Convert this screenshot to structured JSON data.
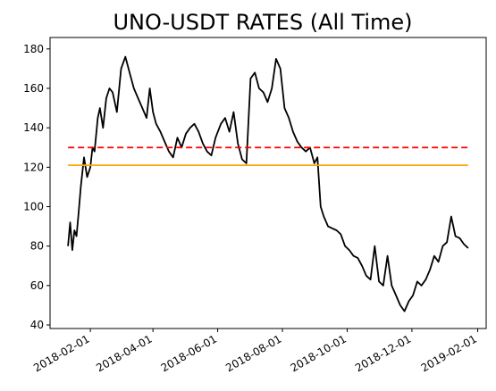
{
  "chart_data": {
    "type": "line",
    "title": "UNO-USDT RATES (All Time)",
    "xlabel": "",
    "ylabel": "",
    "x_range": [
      "2018-01-11",
      "2019-01-23"
    ],
    "ylim": [
      38.2,
      185.8
    ],
    "x_ticks": [
      "2018-02-01",
      "2018-04-01",
      "2018-06-01",
      "2018-08-01",
      "2018-10-01",
      "2018-12-01",
      "2019-02-01"
    ],
    "y_ticks": [
      40,
      60,
      80,
      100,
      120,
      140,
      160,
      180
    ],
    "grid": false,
    "legend": "none",
    "series": [
      {
        "color": "#000000",
        "x": [
          "2018-01-11",
          "2018-01-13",
          "2018-01-15",
          "2018-01-17",
          "2018-01-19",
          "2018-01-21",
          "2018-01-23",
          "2018-01-26",
          "2018-01-29",
          "2018-02-01",
          "2018-02-03",
          "2018-02-05",
          "2018-02-08",
          "2018-02-10",
          "2018-02-13",
          "2018-02-16",
          "2018-02-19",
          "2018-02-22",
          "2018-02-26",
          "2018-03-02",
          "2018-03-06",
          "2018-03-10",
          "2018-03-14",
          "2018-03-18",
          "2018-03-22",
          "2018-03-26",
          "2018-03-29",
          "2018-04-01",
          "2018-04-04",
          "2018-04-08",
          "2018-04-12",
          "2018-04-16",
          "2018-04-20",
          "2018-04-24",
          "2018-04-28",
          "2018-05-02",
          "2018-05-06",
          "2018-05-10",
          "2018-05-14",
          "2018-05-18",
          "2018-05-22",
          "2018-05-26",
          "2018-05-30",
          "2018-06-04",
          "2018-06-08",
          "2018-06-12",
          "2018-06-16",
          "2018-06-20",
          "2018-06-24",
          "2018-06-28",
          "2018-07-02",
          "2018-07-06",
          "2018-07-10",
          "2018-07-14",
          "2018-07-18",
          "2018-07-22",
          "2018-07-26",
          "2018-07-30",
          "2018-08-03",
          "2018-08-07",
          "2018-08-11",
          "2018-08-15",
          "2018-08-19",
          "2018-08-23",
          "2018-08-27",
          "2018-08-31",
          "2018-09-03",
          "2018-09-06",
          "2018-09-09",
          "2018-09-13",
          "2018-09-17",
          "2018-09-21",
          "2018-09-25",
          "2018-09-29",
          "2018-10-03",
          "2018-10-07",
          "2018-10-11",
          "2018-10-15",
          "2018-10-19",
          "2018-10-23",
          "2018-10-27",
          "2018-10-31",
          "2018-11-04",
          "2018-11-08",
          "2018-11-12",
          "2018-11-16",
          "2018-11-20",
          "2018-11-24",
          "2018-11-28",
          "2018-12-02",
          "2018-12-06",
          "2018-12-10",
          "2018-12-14",
          "2018-12-18",
          "2018-12-22",
          "2018-12-26",
          "2018-12-30",
          "2019-01-03",
          "2019-01-07",
          "2019-01-11",
          "2019-01-15",
          "2019-01-19",
          "2019-01-23"
        ],
        "values": [
          80,
          92,
          78,
          88,
          85,
          97,
          110,
          125,
          115,
          120,
          130,
          128,
          145,
          150,
          140,
          155,
          160,
          158,
          148,
          170,
          176,
          168,
          160,
          155,
          150,
          145,
          160,
          148,
          142,
          138,
          133,
          128,
          125,
          135,
          130,
          137,
          140,
          142,
          138,
          132,
          128,
          126,
          135,
          142,
          145,
          138,
          148,
          132,
          124,
          122,
          165,
          168,
          160,
          158,
          153,
          160,
          175,
          170,
          150,
          145,
          138,
          133,
          130,
          128,
          130,
          122,
          125,
          100,
          95,
          90,
          89,
          88,
          86,
          80,
          78,
          75,
          74,
          70,
          65,
          63,
          80,
          62,
          60,
          75,
          60,
          55,
          50,
          47,
          52,
          55,
          62,
          60,
          63,
          68,
          75,
          72,
          80,
          82,
          95,
          85,
          84,
          81,
          79
        ]
      }
    ],
    "reference_lines": [
      {
        "value": 130,
        "color": "#ff0000",
        "style": "dashed"
      },
      {
        "value": 121,
        "color": "#ffa500",
        "style": "solid"
      }
    ]
  }
}
